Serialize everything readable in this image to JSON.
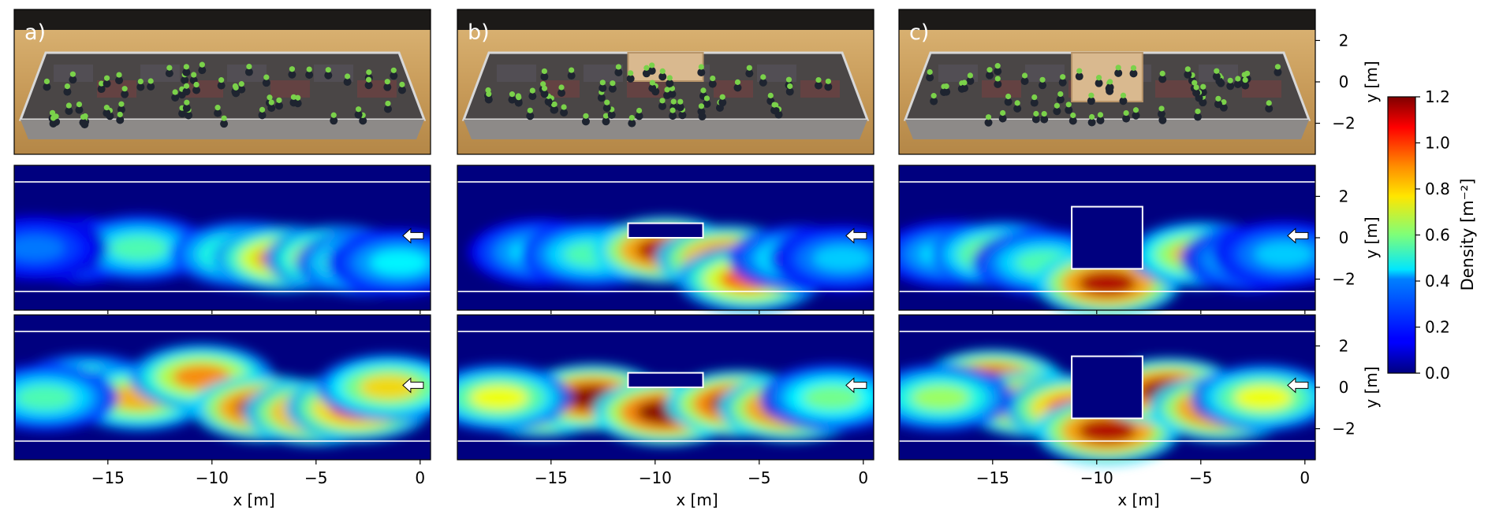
{
  "figure": {
    "panel_letters": [
      "a)",
      "b)",
      "c)"
    ]
  },
  "chart_data": {
    "type": "heatmap",
    "xlabel": "x [m]",
    "ylabel": "y [m]",
    "xlim": [
      -19.5,
      0.5
    ],
    "ylim": [
      -3.5,
      3.5
    ],
    "x_ticks": [
      -15,
      -10,
      -5,
      0
    ],
    "y_ticks": [
      2,
      0,
      -2
    ],
    "x_tick_labels": [
      "−15",
      "−10",
      "−5",
      "0"
    ],
    "y_tick_labels": [
      "2",
      "0",
      "−2"
    ],
    "colorbar": {
      "label": "Density [m⁻²]",
      "range": [
        0.0,
        1.2
      ],
      "ticks": [
        0.0,
        0.2,
        0.4,
        0.6,
        0.8,
        1.0,
        1.2
      ],
      "tick_labels": [
        "0.0",
        "0.2",
        "0.4",
        "0.6",
        "0.8",
        "1.0",
        "1.2"
      ],
      "colormap": "jet"
    },
    "boundary_lines_y": [
      2.7,
      -2.6
    ],
    "arrow": {
      "x": -0.3,
      "y": 0.1,
      "direction": "left"
    },
    "columns": [
      {
        "letter": "a)",
        "obstacle": null
      },
      {
        "letter": "b)",
        "obstacle": {
          "x0": -11.3,
          "x1": -7.7,
          "y0": 0.0,
          "y1": 0.7
        }
      },
      {
        "letter": "c)",
        "obstacle": {
          "x0": -11.2,
          "x1": -7.8,
          "y0": -1.5,
          "y1": 1.5
        }
      }
    ],
    "rows": [
      {
        "row": "photo"
      },
      {
        "row": "density-low",
        "columns": [
          {
            "blobs": [
              {
                "x": -16.5,
                "y": -0.6,
                "v": 0.45
              },
              {
                "x": -13.5,
                "y": -0.5,
                "v": 0.55
              },
              {
                "x": -8.5,
                "y": -0.8,
                "v": 0.65
              },
              {
                "x": -6.5,
                "y": -1.0,
                "v": 0.95
              },
              {
                "x": -4.0,
                "y": -1.0,
                "v": 0.9
              },
              {
                "x": -2.5,
                "y": -1.2,
                "v": 0.7
              },
              {
                "x": -18.5,
                "y": -0.5,
                "v": 0.3
              },
              {
                "x": -1.0,
                "y": -1.2,
                "v": 0.45
              }
            ]
          },
          {
            "blobs": [
              {
                "x": -15.5,
                "y": -0.7,
                "v": 0.45
              },
              {
                "x": -13.0,
                "y": -0.8,
                "v": 0.55
              },
              {
                "x": -9.5,
                "y": -0.6,
                "v": 1.15
              },
              {
                "x": -6.5,
                "y": -1.0,
                "v": 1.1
              },
              {
                "x": -5.5,
                "y": -2.0,
                "v": 0.95
              },
              {
                "x": -3.0,
                "y": -1.0,
                "v": 0.55
              },
              {
                "x": -1.0,
                "y": -1.0,
                "v": 0.4
              }
            ]
          },
          {
            "blobs": [
              {
                "x": -17.0,
                "y": -0.8,
                "v": 0.45
              },
              {
                "x": -14.5,
                "y": -0.8,
                "v": 0.75
              },
              {
                "x": -12.5,
                "y": -1.2,
                "v": 0.55
              },
              {
                "x": -9.5,
                "y": -2.2,
                "v": 1.15
              },
              {
                "x": -5.0,
                "y": -0.8,
                "v": 0.85
              },
              {
                "x": -2.5,
                "y": -1.0,
                "v": 0.5
              },
              {
                "x": -1.0,
                "y": -0.8,
                "v": 0.4
              }
            ]
          }
        ]
      },
      {
        "row": "density-high",
        "columns": [
          {
            "blobs": [
              {
                "x": -16.0,
                "y": 0.0,
                "v": 0.7
              },
              {
                "x": -13.5,
                "y": -0.5,
                "v": 0.85
              },
              {
                "x": -10.5,
                "y": 0.5,
                "v": 0.9
              },
              {
                "x": -7.5,
                "y": -1.0,
                "v": 1.15
              },
              {
                "x": -5.0,
                "y": -1.2,
                "v": 1.1
              },
              {
                "x": -3.0,
                "y": -1.0,
                "v": 1.05
              },
              {
                "x": -1.5,
                "y": 0.0,
                "v": 0.8
              },
              {
                "x": -18.0,
                "y": -0.5,
                "v": 0.55
              }
            ]
          },
          {
            "blobs": [
              {
                "x": -15.5,
                "y": -0.8,
                "v": 1.15
              },
              {
                "x": -13.0,
                "y": -0.5,
                "v": 1.2
              },
              {
                "x": -9.5,
                "y": -1.2,
                "v": 1.2
              },
              {
                "x": -6.0,
                "y": -0.8,
                "v": 1.2
              },
              {
                "x": -3.5,
                "y": -1.0,
                "v": 1.15
              },
              {
                "x": -1.5,
                "y": -0.5,
                "v": 0.6
              },
              {
                "x": -17.5,
                "y": -0.5,
                "v": 0.75
              }
            ]
          },
          {
            "blobs": [
              {
                "x": -15.0,
                "y": 0.2,
                "v": 1.2
              },
              {
                "x": -13.0,
                "y": -0.8,
                "v": 1.15
              },
              {
                "x": -11.0,
                "y": -1.0,
                "v": 1.05
              },
              {
                "x": -9.5,
                "y": -2.1,
                "v": 1.15
              },
              {
                "x": -6.5,
                "y": -0.2,
                "v": 1.2
              },
              {
                "x": -4.0,
                "y": -1.0,
                "v": 1.15
              },
              {
                "x": -2.0,
                "y": -0.5,
                "v": 0.75
              },
              {
                "x": -17.5,
                "y": -0.5,
                "v": 0.65
              }
            ]
          }
        ]
      }
    ]
  }
}
